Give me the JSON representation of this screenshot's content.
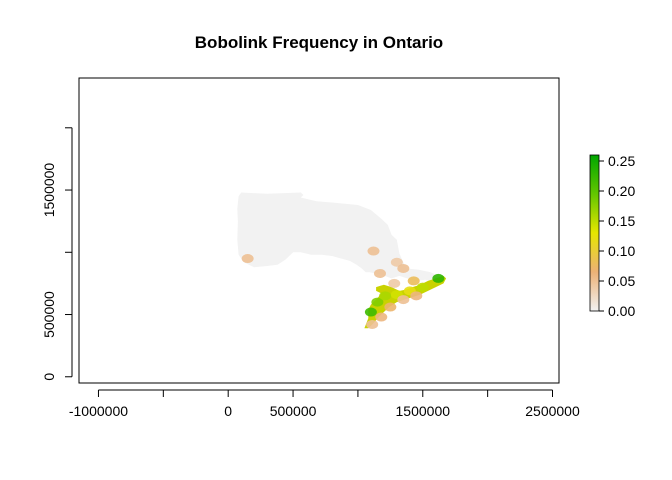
{
  "chart_data": {
    "type": "heatmap",
    "title": "Bobolink Frequency in Ontario",
    "xlabel": "",
    "ylabel": "",
    "xlim": [
      -1150000,
      2550000
    ],
    "ylim": [
      -50000,
      2400000
    ],
    "x_ticks": [
      {
        "value": -1000000,
        "label": "-1000000"
      },
      {
        "value": -500000,
        "label": ""
      },
      {
        "value": 0,
        "label": "0"
      },
      {
        "value": 500000,
        "label": "500000"
      },
      {
        "value": 1000000,
        "label": ""
      },
      {
        "value": 1500000,
        "label": "1500000"
      },
      {
        "value": 2000000,
        "label": ""
      },
      {
        "value": 2500000,
        "label": "2500000"
      }
    ],
    "y_ticks": [
      {
        "value": 0,
        "label": "0"
      },
      {
        "value": 500000,
        "label": "500000"
      },
      {
        "value": 1000000,
        "label": ""
      },
      {
        "value": 1500000,
        "label": "1500000"
      },
      {
        "value": 2000000,
        "label": ""
      }
    ],
    "legend": {
      "placement": "right",
      "min": 0,
      "max": 0.26,
      "ticks": [
        {
          "value": 0.0,
          "label": "0.00"
        },
        {
          "value": 0.05,
          "label": "0.05"
        },
        {
          "value": 0.1,
          "label": "0.10"
        },
        {
          "value": 0.15,
          "label": "0.15"
        },
        {
          "value": 0.2,
          "label": "0.20"
        },
        {
          "value": 0.25,
          "label": "0.25"
        }
      ],
      "colors": [
        "#f2f2f2",
        "#ecb176",
        "#e6e600",
        "#63c600",
        "#00a600"
      ]
    },
    "regions": [
      {
        "name": "ontario-zero-area",
        "value": 0,
        "color": "#f2f2f2",
        "outline": [
          [
            80000,
            1450000
          ],
          [
            100000,
            1480000
          ],
          [
            300000,
            1470000
          ],
          [
            560000,
            1480000
          ],
          [
            580000,
            1460000
          ],
          [
            560000,
            1440000
          ],
          [
            680000,
            1410000
          ],
          [
            800000,
            1400000
          ],
          [
            1000000,
            1380000
          ],
          [
            1100000,
            1340000
          ],
          [
            1180000,
            1270000
          ],
          [
            1230000,
            1220000
          ],
          [
            1260000,
            1140000
          ],
          [
            1300000,
            1100000
          ],
          [
            1320000,
            990000
          ],
          [
            1350000,
            920000
          ],
          [
            1380000,
            870000
          ],
          [
            1470000,
            860000
          ],
          [
            1560000,
            840000
          ],
          [
            1600000,
            820000
          ],
          [
            1640000,
            780000
          ],
          [
            1600000,
            760000
          ],
          [
            1520000,
            780000
          ],
          [
            1440000,
            770000
          ],
          [
            1380000,
            790000
          ],
          [
            1320000,
            810000
          ],
          [
            1260000,
            790000
          ],
          [
            1180000,
            820000
          ],
          [
            1090000,
            840000
          ],
          [
            1060000,
            840000
          ],
          [
            1030000,
            870000
          ],
          [
            990000,
            900000
          ],
          [
            940000,
            930000
          ],
          [
            870000,
            950000
          ],
          [
            800000,
            970000
          ],
          [
            720000,
            980000
          ],
          [
            640000,
            980000
          ],
          [
            560000,
            1000000
          ],
          [
            500000,
            1000000
          ],
          [
            440000,
            940000
          ],
          [
            380000,
            900000
          ],
          [
            300000,
            890000
          ],
          [
            200000,
            880000
          ],
          [
            120000,
            920000
          ],
          [
            80000,
            980000
          ],
          [
            70000,
            1100000
          ],
          [
            75000,
            1250000
          ],
          [
            70000,
            1350000
          ]
        ]
      },
      {
        "name": "southern-ontario",
        "value": 0.1,
        "color": "#c9d200",
        "outline": [
          [
            1050000,
            390000
          ],
          [
            1080000,
            470000
          ],
          [
            1080000,
            540000
          ],
          [
            1100000,
            580000
          ],
          [
            1150000,
            630000
          ],
          [
            1180000,
            670000
          ],
          [
            1140000,
            690000
          ],
          [
            1140000,
            720000
          ],
          [
            1200000,
            740000
          ],
          [
            1260000,
            720000
          ],
          [
            1320000,
            690000
          ],
          [
            1370000,
            700000
          ],
          [
            1420000,
            720000
          ],
          [
            1480000,
            740000
          ],
          [
            1540000,
            770000
          ],
          [
            1600000,
            790000
          ],
          [
            1660000,
            810000
          ],
          [
            1680000,
            790000
          ],
          [
            1660000,
            750000
          ],
          [
            1600000,
            720000
          ],
          [
            1540000,
            690000
          ],
          [
            1480000,
            660000
          ],
          [
            1420000,
            640000
          ],
          [
            1360000,
            620000
          ],
          [
            1300000,
            600000
          ],
          [
            1240000,
            560000
          ],
          [
            1200000,
            520000
          ],
          [
            1160000,
            480000
          ],
          [
            1120000,
            430000
          ],
          [
            1080000,
            390000
          ]
        ]
      }
    ],
    "patches": [
      {
        "x": 1100000,
        "y": 520000,
        "value": 0.22
      },
      {
        "x": 1150000,
        "y": 600000,
        "value": 0.18
      },
      {
        "x": 1210000,
        "y": 650000,
        "value": 0.16
      },
      {
        "x": 1300000,
        "y": 660000,
        "value": 0.14
      },
      {
        "x": 1400000,
        "y": 690000,
        "value": 0.12
      },
      {
        "x": 1500000,
        "y": 720000,
        "value": 0.15
      },
      {
        "x": 1620000,
        "y": 790000,
        "value": 0.23
      },
      {
        "x": 1110000,
        "y": 420000,
        "value": 0.05
      },
      {
        "x": 1180000,
        "y": 480000,
        "value": 0.06
      },
      {
        "x": 1250000,
        "y": 560000,
        "value": 0.07
      },
      {
        "x": 1350000,
        "y": 620000,
        "value": 0.05
      },
      {
        "x": 1450000,
        "y": 650000,
        "value": 0.06
      },
      {
        "x": 1170000,
        "y": 830000,
        "value": 0.05
      },
      {
        "x": 1300000,
        "y": 920000,
        "value": 0.04
      },
      {
        "x": 1350000,
        "y": 870000,
        "value": 0.05
      },
      {
        "x": 1120000,
        "y": 1010000,
        "value": 0.05
      },
      {
        "x": 150000,
        "y": 950000,
        "value": 0.05
      },
      {
        "x": 1280000,
        "y": 750000,
        "value": 0.04
      },
      {
        "x": 1430000,
        "y": 770000,
        "value": 0.08
      }
    ]
  }
}
